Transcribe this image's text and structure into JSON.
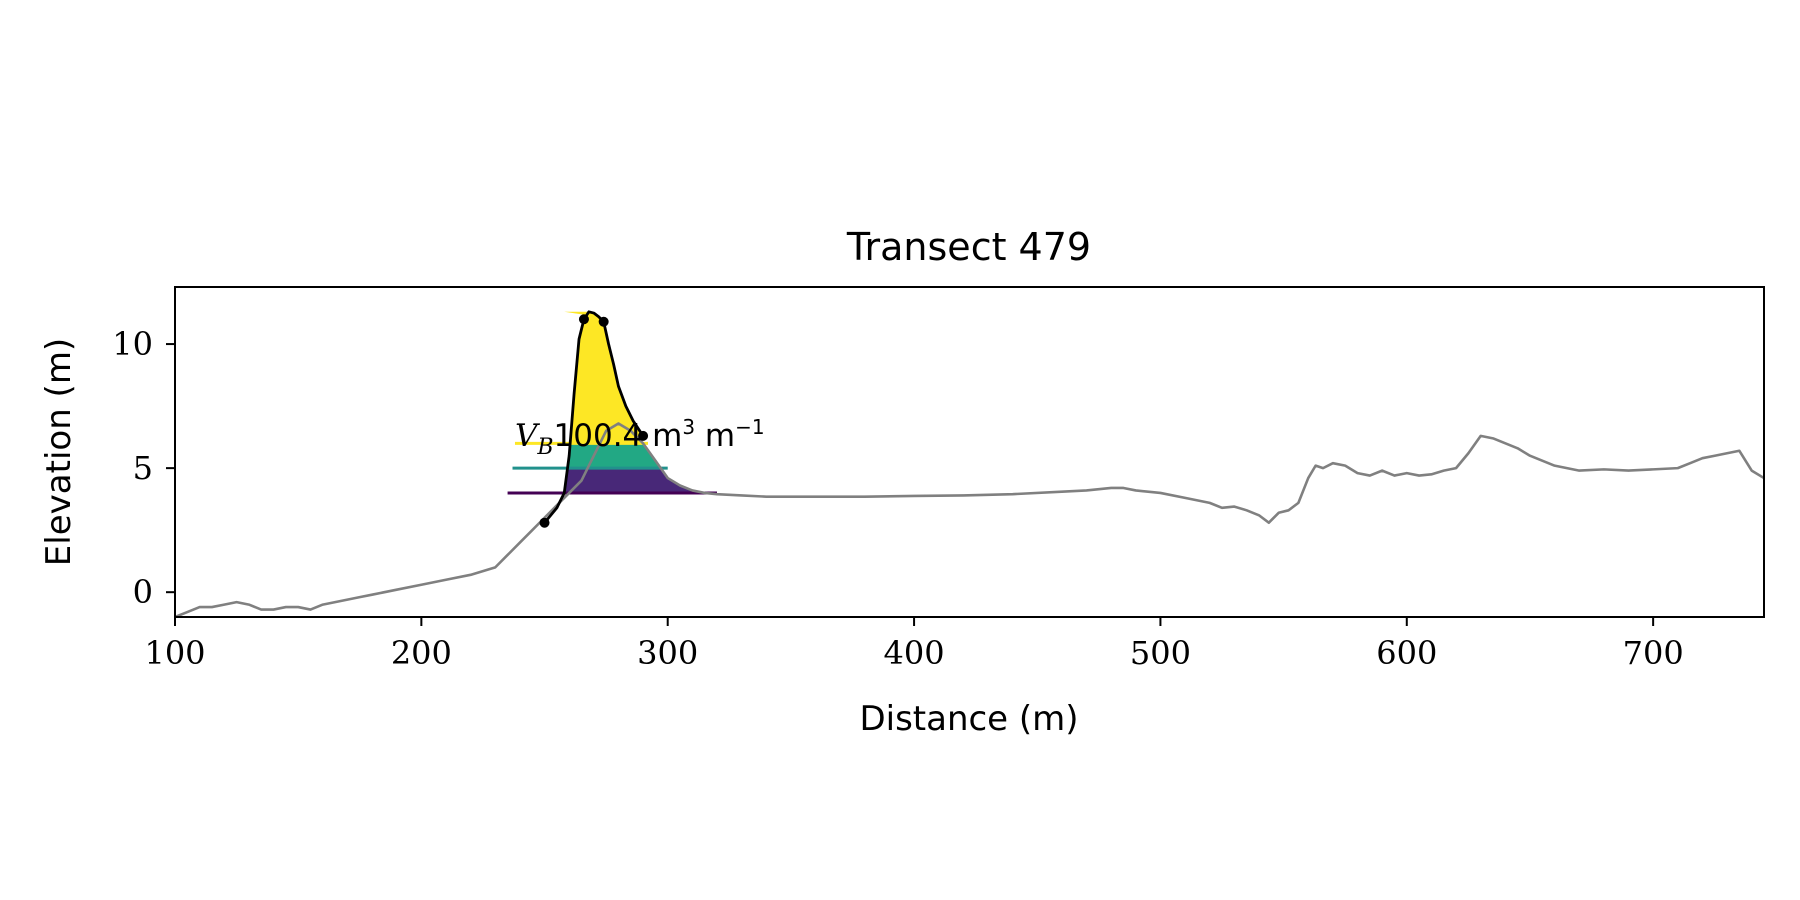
{
  "chart_data": {
    "type": "line",
    "title": "Transect 479",
    "xlabel": "Distance (m)",
    "ylabel": "Elevation (m)",
    "xlim": [
      100,
      745
    ],
    "ylim": [
      -1,
      12.3
    ],
    "xticks": [
      100,
      200,
      300,
      400,
      500,
      600,
      700
    ],
    "yticks": [
      0,
      5,
      10
    ],
    "grid": false,
    "annotation": {
      "symbol": "V",
      "subscript": "B",
      "text": "100.4 m",
      "sup1": "3",
      "text2": " m",
      "sup2": "−1",
      "x": 238,
      "y": 6.3
    },
    "profile": {
      "name": "elevation profile",
      "color": "#808080",
      "x": [
        100,
        105,
        110,
        115,
        120,
        125,
        130,
        135,
        140,
        145,
        150,
        155,
        160,
        165,
        170,
        175,
        180,
        190,
        200,
        210,
        220,
        230,
        235,
        240,
        245,
        250,
        255,
        260,
        265,
        270,
        275,
        280,
        285,
        290,
        295,
        300,
        305,
        310,
        315,
        320,
        330,
        340,
        360,
        380,
        400,
        420,
        440,
        460,
        470,
        480,
        485,
        490,
        500,
        510,
        520,
        525,
        530,
        535,
        540,
        544,
        548,
        552,
        556,
        560,
        563,
        566,
        570,
        575,
        580,
        585,
        590,
        595,
        600,
        605,
        610,
        615,
        620,
        625,
        630,
        635,
        640,
        645,
        650,
        655,
        660,
        665,
        670,
        680,
        690,
        700,
        710,
        715,
        720,
        725,
        730,
        735,
        740,
        745
      ],
      "y": [
        -1.0,
        -0.8,
        -0.6,
        -0.6,
        -0.5,
        -0.4,
        -0.5,
        -0.7,
        -0.7,
        -0.6,
        -0.6,
        -0.7,
        -0.5,
        -0.4,
        -0.3,
        -0.2,
        -0.1,
        0.1,
        0.3,
        0.5,
        0.7,
        1.0,
        1.5,
        2.0,
        2.5,
        3.0,
        3.5,
        4.0,
        4.5,
        5.5,
        6.5,
        6.8,
        6.5,
        6.0,
        5.3,
        4.6,
        4.3,
        4.1,
        4.0,
        3.95,
        3.9,
        3.85,
        3.85,
        3.85,
        3.88,
        3.9,
        3.95,
        4.05,
        4.1,
        4.2,
        4.2,
        4.1,
        4.0,
        3.8,
        3.6,
        3.4,
        3.45,
        3.3,
        3.1,
        2.8,
        3.2,
        3.3,
        3.6,
        4.6,
        5.1,
        5.0,
        5.2,
        5.1,
        4.8,
        4.7,
        4.9,
        4.7,
        4.8,
        4.7,
        4.75,
        4.9,
        5.0,
        5.6,
        6.3,
        6.2,
        6.0,
        5.8,
        5.5,
        5.3,
        5.1,
        5.0,
        4.9,
        4.95,
        4.9,
        4.95,
        5.0,
        5.2,
        5.4,
        5.5,
        5.6,
        5.7,
        4.9,
        4.6
      ]
    },
    "dune_outline": {
      "name": "dune",
      "color": "#000000",
      "x": [
        250,
        255,
        258,
        260,
        262,
        264,
        266,
        268,
        270,
        272,
        274,
        276,
        278,
        280,
        283,
        286,
        290
      ],
      "y": [
        2.8,
        3.4,
        4.0,
        5.5,
        8.0,
        10.2,
        11.0,
        11.3,
        11.25,
        11.1,
        10.9,
        10.0,
        9.2,
        8.3,
        7.5,
        6.9,
        6.3
      ]
    },
    "markers": {
      "color": "#000000",
      "x": [
        250,
        266,
        274,
        290
      ],
      "y": [
        2.8,
        11.0,
        10.9,
        6.3
      ]
    },
    "bands": [
      {
        "name": "band-low",
        "color": "#440154",
        "base": 4.0,
        "top": 5.0,
        "line_xmin": 235,
        "line_xmax": 320
      },
      {
        "name": "band-mid",
        "color": "#21918c",
        "base": 5.0,
        "top": 6.0,
        "line_xmin": 237,
        "line_xmax": 300
      },
      {
        "name": "band-high",
        "color": "#fde725",
        "base": 6.0,
        "top": 11.3,
        "line_xmin": 238,
        "line_xmax": 292
      }
    ],
    "band_fill_colors": [
      "#482878",
      "#22a884",
      "#fde725"
    ],
    "shadow_color": "#c8c8c8"
  }
}
